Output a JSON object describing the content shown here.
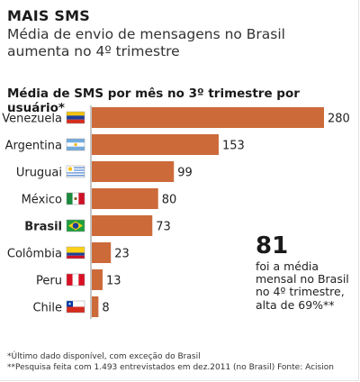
{
  "header": {
    "kicker": "MAIS SMS",
    "headline": "Média de envio de mensagens no Brasil aumenta no 4º trimestre"
  },
  "colors": {
    "bar": "#cc6a3a",
    "axis": "#888888",
    "text": "#222222"
  },
  "chart_data": {
    "type": "bar",
    "orientation": "horizontal",
    "title": "Média de SMS por mês no 3º trimestre por usuário*",
    "categories": [
      "Venezuela",
      "Argentina",
      "Uruguai",
      "México",
      "Brasil",
      "Colômbia",
      "Peru",
      "Chile"
    ],
    "values": [
      280,
      153,
      99,
      80,
      73,
      23,
      13,
      8
    ],
    "highlight": "Brasil",
    "flag_icons": [
      "venezuela-flag-icon",
      "argentina-flag-icon",
      "uruguay-flag-icon",
      "mexico-flag-icon",
      "brazil-flag-icon",
      "colombia-flag-icon",
      "peru-flag-icon",
      "chile-flag-icon"
    ],
    "xlim": [
      0,
      280
    ],
    "grid": false,
    "legend": "none"
  },
  "callout": {
    "value": "81",
    "text": "foi a média mensal no Brasil no 4º trimestre, alta de 69%**"
  },
  "footnotes": {
    "note1": "*Último dado disponível, com exceção do Brasil",
    "note2": "**Pesquisa feita com 1.493 entrevistados em dez.2011 (no Brasil)    Fonte: Acision"
  }
}
